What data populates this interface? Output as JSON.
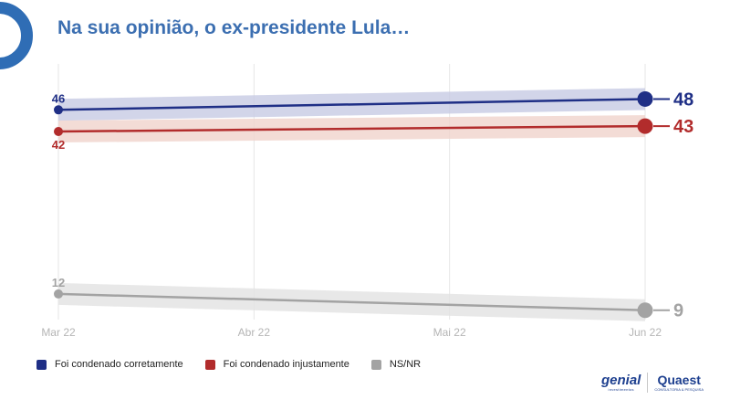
{
  "header": {
    "title": "Na sua opinião, o ex-presidente Lula…"
  },
  "chart_data": {
    "type": "line",
    "title": "Na sua opinião, o ex-presidente Lula…",
    "x": [
      "Mar 22",
      "Abr 22",
      "Mai 22",
      "Jun 22"
    ],
    "series": [
      {
        "name": "Foi condenado corretamente",
        "color": "#1f2f86",
        "band_color": "#c7cbe4",
        "points": [
          {
            "x": "Mar 22",
            "y": 46
          },
          {
            "x": "Jun 22",
            "y": 48
          }
        ]
      },
      {
        "name": "Foi condenado injustamente",
        "color": "#b22c2c",
        "band_color": "#f0d3cc",
        "points": [
          {
            "x": "Mar 22",
            "y": 42
          },
          {
            "x": "Jun 22",
            "y": 43
          }
        ]
      },
      {
        "name": "NS/NR",
        "color": "#a3a3a3",
        "band_color": "#e2e2e2",
        "points": [
          {
            "x": "Mar 22",
            "y": 12
          },
          {
            "x": "Jun 22",
            "y": 9
          }
        ]
      }
    ],
    "grid": true,
    "legend_position": "bottom-left"
  },
  "logos": {
    "genial": {
      "word": "genial",
      "sub": "investimentos"
    },
    "quaest": {
      "word": "Quaest",
      "sub": "CONSULTORIA & PESQUISA"
    }
  }
}
